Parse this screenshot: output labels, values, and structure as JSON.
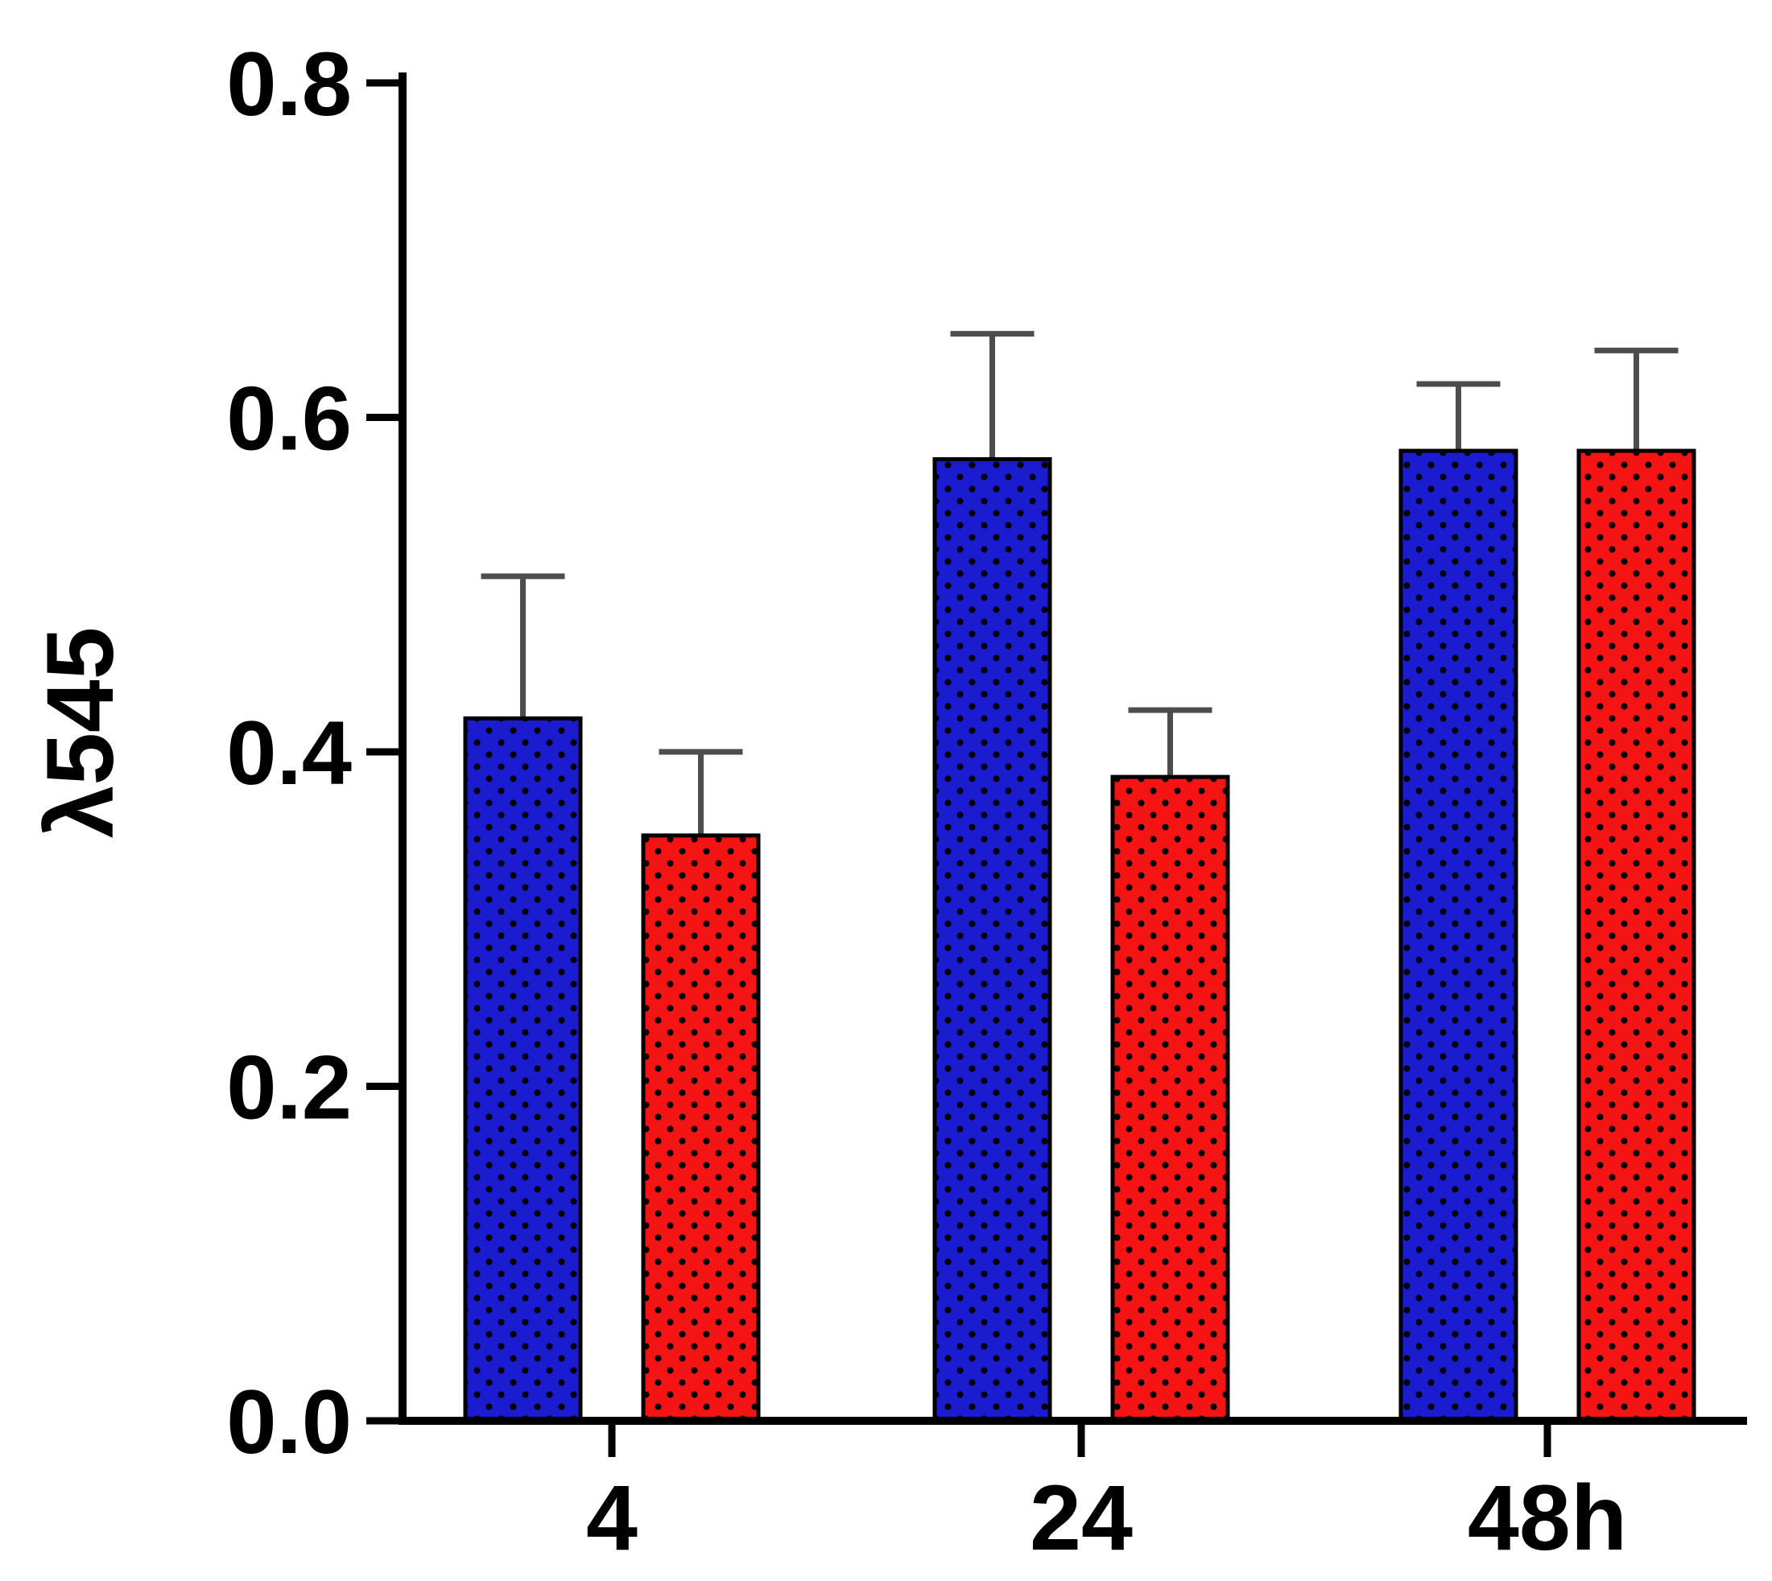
{
  "chart_data": {
    "type": "bar",
    "title": "",
    "ylabel": "λ545",
    "xlabel": "",
    "categories": [
      "4",
      "24",
      "48h"
    ],
    "series": [
      {
        "name": "blue",
        "color": "#1b1bd0",
        "pattern": "dots",
        "values": [
          0.42,
          0.575,
          0.58
        ],
        "errors_plus": [
          0.085,
          0.075,
          0.04
        ]
      },
      {
        "name": "red",
        "color": "#f41414",
        "pattern": "dots",
        "values": [
          0.35,
          0.385,
          0.58
        ],
        "errors_plus": [
          0.05,
          0.04,
          0.06
        ]
      }
    ],
    "ylim": [
      0,
      0.8
    ],
    "yticks": [
      0.0,
      0.2,
      0.4,
      0.6,
      0.8
    ],
    "ytick_labels": [
      "0.0",
      "0.2",
      "0.4",
      "0.6",
      "0.8"
    ],
    "grid": false,
    "legend": "none",
    "axis_color": "#000000",
    "bar_outline_color": "#000000",
    "dot_color": "#000000",
    "error_bar_color": "#4d4d4d"
  }
}
